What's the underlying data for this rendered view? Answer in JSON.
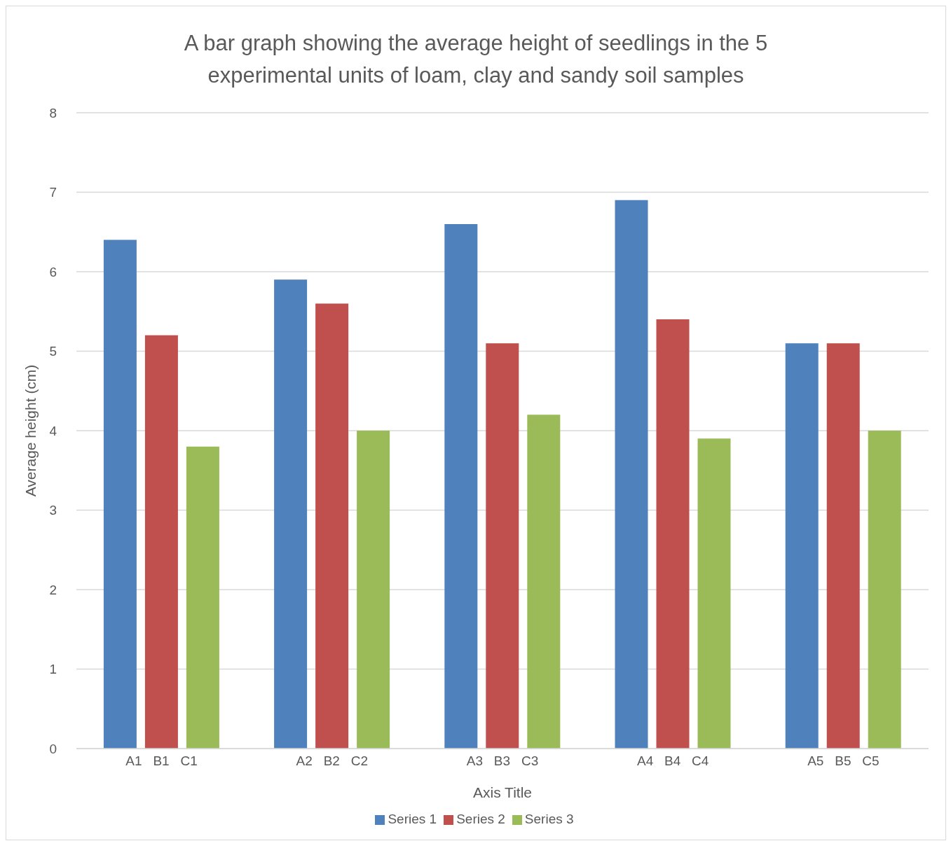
{
  "chart_data": {
    "type": "bar",
    "title": "A bar graph showing the average height of seedlings in the 5 experimental units of loam, clay and sandy soil samples",
    "xlabel": "Axis Title",
    "ylabel": "Average height (cm)",
    "categories": [
      "A1   B1   C1",
      "A2   B2   C2",
      "A3   B3   C3",
      "A4   B4   C4",
      "A5   B5   C5"
    ],
    "series": [
      {
        "name": "Series 1",
        "color": "#4f81bd",
        "values": [
          6.4,
          5.9,
          6.6,
          6.9,
          5.1
        ]
      },
      {
        "name": "Series 2",
        "color": "#c0504d",
        "values": [
          5.2,
          5.6,
          5.1,
          5.4,
          5.1
        ]
      },
      {
        "name": "Series 3",
        "color": "#9bbb59",
        "values": [
          3.8,
          4.0,
          4.2,
          3.9,
          4.0
        ]
      }
    ],
    "ylim": [
      0,
      8
    ],
    "yticks": [
      0,
      1,
      2,
      3,
      4,
      5,
      6,
      7,
      8
    ],
    "grid": "y",
    "legend": "bottom"
  }
}
